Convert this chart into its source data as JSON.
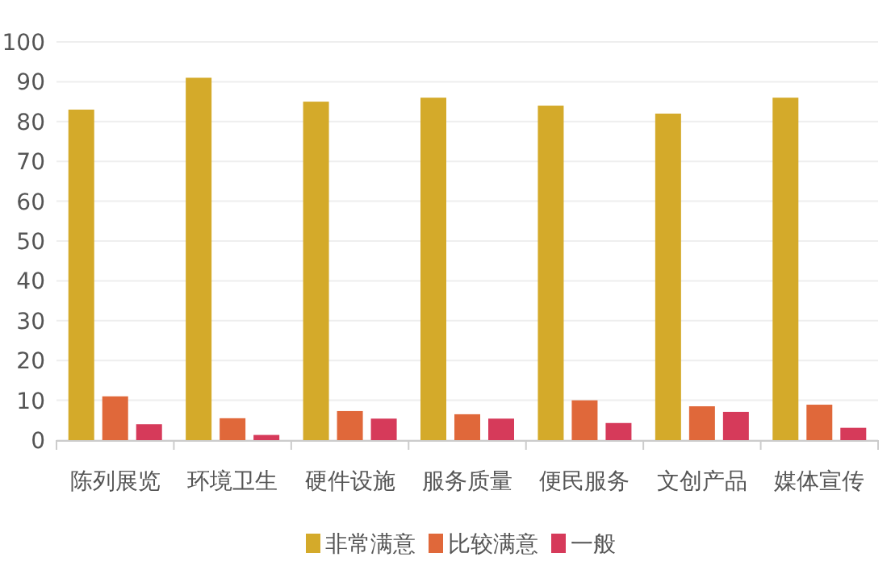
{
  "chart_data": {
    "type": "bar",
    "categories": [
      "陈列展览",
      "环境卫生",
      "硬件设施",
      "服务质量",
      "便民服务",
      "文创产品",
      "媒体宣传"
    ],
    "series": [
      {
        "name": "非常满意",
        "color": "#d4aa2a",
        "values": [
          83,
          91,
          85,
          86,
          84,
          82,
          86
        ]
      },
      {
        "name": "比较满意",
        "color": "#e0683a",
        "values": [
          11,
          5.5,
          7.3,
          6.5,
          10,
          8.5,
          8.9
        ]
      },
      {
        "name": "一般",
        "color": "#d63a5a",
        "values": [
          4,
          1.3,
          5.4,
          5.4,
          4.3,
          7.1,
          3.1
        ]
      }
    ],
    "ylim": [
      0,
      100
    ],
    "yticks": [
      0,
      10,
      20,
      30,
      40,
      50,
      60,
      70,
      80,
      90,
      100
    ],
    "grid": "y",
    "legend": "bottom"
  }
}
